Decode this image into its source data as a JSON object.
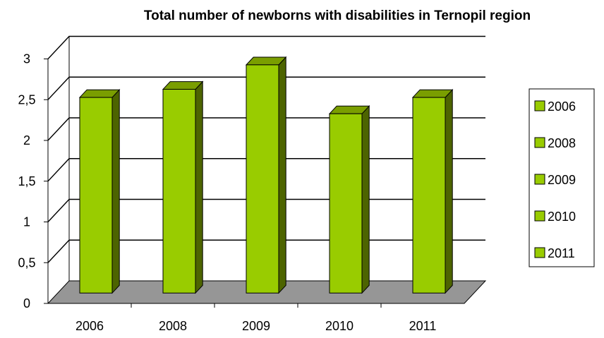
{
  "chart_data": {
    "type": "bar",
    "title": "Total number of newborns with disabilities in Ternopil region",
    "categories": [
      "2006",
      "2008",
      "2009",
      "2010",
      "2011"
    ],
    "series": [
      {
        "name": "2006",
        "values": [
          2.4,
          null,
          null,
          null,
          null
        ]
      },
      {
        "name": "2008",
        "values": [
          null,
          2.5,
          null,
          null,
          null
        ]
      },
      {
        "name": "2009",
        "values": [
          null,
          null,
          2.8,
          null,
          null
        ]
      },
      {
        "name": "2010",
        "values": [
          null,
          null,
          null,
          2.2,
          null
        ]
      },
      {
        "name": "2011",
        "values": [
          null,
          null,
          null,
          null,
          2.4
        ]
      }
    ],
    "values": [
      2.4,
      2.5,
      2.8,
      2.2,
      2.4
    ],
    "y_ticks": [
      "0",
      "0,5",
      "1",
      "1,5",
      "2",
      "2,5",
      "3"
    ],
    "ylim": [
      0,
      3
    ],
    "grid": true,
    "style": "3d-column",
    "legend_position": "right",
    "colors": {
      "bar_front": "#99cc00",
      "bar_top": "#7a9e00",
      "bar_side": "#4d6400",
      "floor": "#969696",
      "gridline": "#000000"
    }
  }
}
